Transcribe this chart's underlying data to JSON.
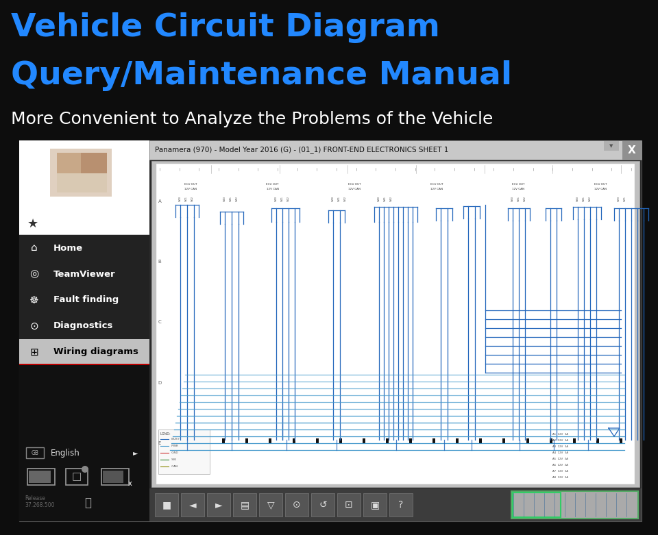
{
  "bg_color": "#0d0d0d",
  "title_line1": "Vehicle Circuit Diagram",
  "title_line2": "Query/Maintenance Manual",
  "title_color": "#2288ff",
  "subtitle": "More Convenient to Analyze the Problems of the Vehicle",
  "subtitle_color": "#ffffff",
  "title_fontsize": 34,
  "subtitle_fontsize": 18,
  "header_text": "Panamera (970) - Model Year 2016 (G) - (01_1) FRONT-END ELECTRONICS SHEET 1",
  "menu_items": [
    "Home",
    "TeamViewer",
    "Fault finding",
    "Diagnostics",
    "Wiring diagrams"
  ],
  "menu_active": 4,
  "wire_color": "#2266bb",
  "wire_color2": "#4499cc",
  "wire_color3": "#66bbdd",
  "sidebar_dark": "#1a1a1a",
  "sidebar_light_w": "#ffffff",
  "menu_bg": "#222222",
  "active_item_bg": "#c0c0c0",
  "toolbar_bg": "#444444",
  "header_bg": "#d4d4d4",
  "diagram_bg": "#f5f5f5",
  "paper_bg": "#ffffff"
}
